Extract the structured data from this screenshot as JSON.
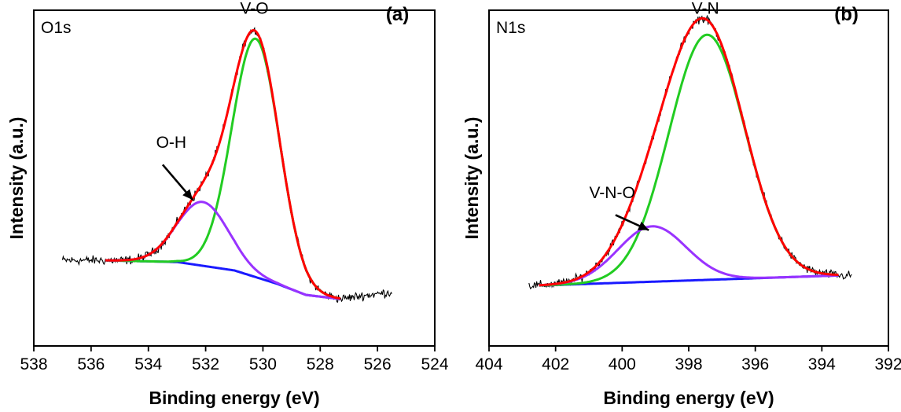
{
  "chart_data": [
    {
      "type": "line",
      "panel": "(a)",
      "region_label": "O1s",
      "xlabel": "Binding energy (eV)",
      "ylabel": "Intensity (a.u.)",
      "xlim": [
        538,
        524
      ],
      "ylim": [
        0,
        100
      ],
      "x_reversed": true,
      "xticks": [
        538,
        536,
        534,
        532,
        530,
        528,
        526,
        524
      ],
      "y_ticks_shown": false,
      "data_range": [
        537,
        525.5
      ],
      "fit_range": [
        535.5,
        527.3
      ],
      "raw_baseline": [
        [
          537.0,
          25.5
        ],
        [
          535.5,
          25.5
        ],
        [
          532.0,
          25.0
        ],
        [
          530.0,
          22.0
        ],
        [
          528.5,
          17.5
        ],
        [
          527.3,
          14.0
        ],
        [
          526.5,
          15.0
        ],
        [
          525.5,
          16.0
        ]
      ],
      "background": [
        [
          535.5,
          25.5
        ],
        [
          533.0,
          25.0
        ],
        [
          531.0,
          22.5
        ],
        [
          529.5,
          18.5
        ],
        [
          528.5,
          15.2
        ],
        [
          527.3,
          14.0
        ]
      ],
      "peaks": [
        {
          "label": "V-O",
          "center": 530.25,
          "height": 71.0,
          "fwhm": 1.95,
          "color": "#22cc22"
        },
        {
          "label": "O-H",
          "center": 532.1,
          "height": 19.0,
          "fwhm": 2.1,
          "color": "#9933ff"
        }
      ],
      "colors": {
        "raw": "#000000",
        "envelope": "#ff0000",
        "background": "#1a1aff"
      },
      "annotations": [
        {
          "text": "V-O",
          "x": 530.3,
          "y": 99
        },
        {
          "text": "O-H",
          "x": 533.2,
          "y": 59
        },
        {
          "text": "(a)",
          "x": 524.9,
          "y": 97
        }
      ],
      "arrow": {
        "from": [
          533.5,
          54
        ],
        "to": [
          532.45,
          43.5
        ]
      }
    },
    {
      "type": "line",
      "panel": "(b)",
      "region_label": "N1s",
      "xlabel": "Binding energy (eV)",
      "ylabel": "Intensity (a.u.)",
      "xlim": [
        404,
        392
      ],
      "ylim": [
        0,
        100
      ],
      "x_reversed": true,
      "xticks": [
        404,
        402,
        400,
        398,
        396,
        394,
        392
      ],
      "y_ticks_shown": false,
      "data_range": [
        402.8,
        393.1
      ],
      "fit_range": [
        402.5,
        393.5
      ],
      "raw_baseline": [
        [
          402.8,
          18.0
        ],
        [
          393.1,
          21.0
        ]
      ],
      "background": [
        [
          402.5,
          18.0
        ],
        [
          393.5,
          21.0
        ]
      ],
      "peaks": [
        {
          "label": "V-N",
          "center": 397.45,
          "height": 73.0,
          "fwhm": 2.7,
          "color": "#22cc22"
        },
        {
          "label": "V-N-O",
          "center": 399.1,
          "height": 16.5,
          "fwhm": 2.4,
          "color": "#9933ff"
        }
      ],
      "colors": {
        "raw": "#000000",
        "envelope": "#ff0000",
        "background": "#1a1aff"
      },
      "annotations": [
        {
          "text": "V-N",
          "x": 397.5,
          "y": 99
        },
        {
          "text": "V-N-O",
          "x": 400.3,
          "y": 44
        },
        {
          "text": "(b)",
          "x": 392.9,
          "y": 97
        }
      ],
      "arrow": {
        "from": [
          400.2,
          39
        ],
        "to": [
          399.2,
          34.5
        ]
      }
    }
  ]
}
